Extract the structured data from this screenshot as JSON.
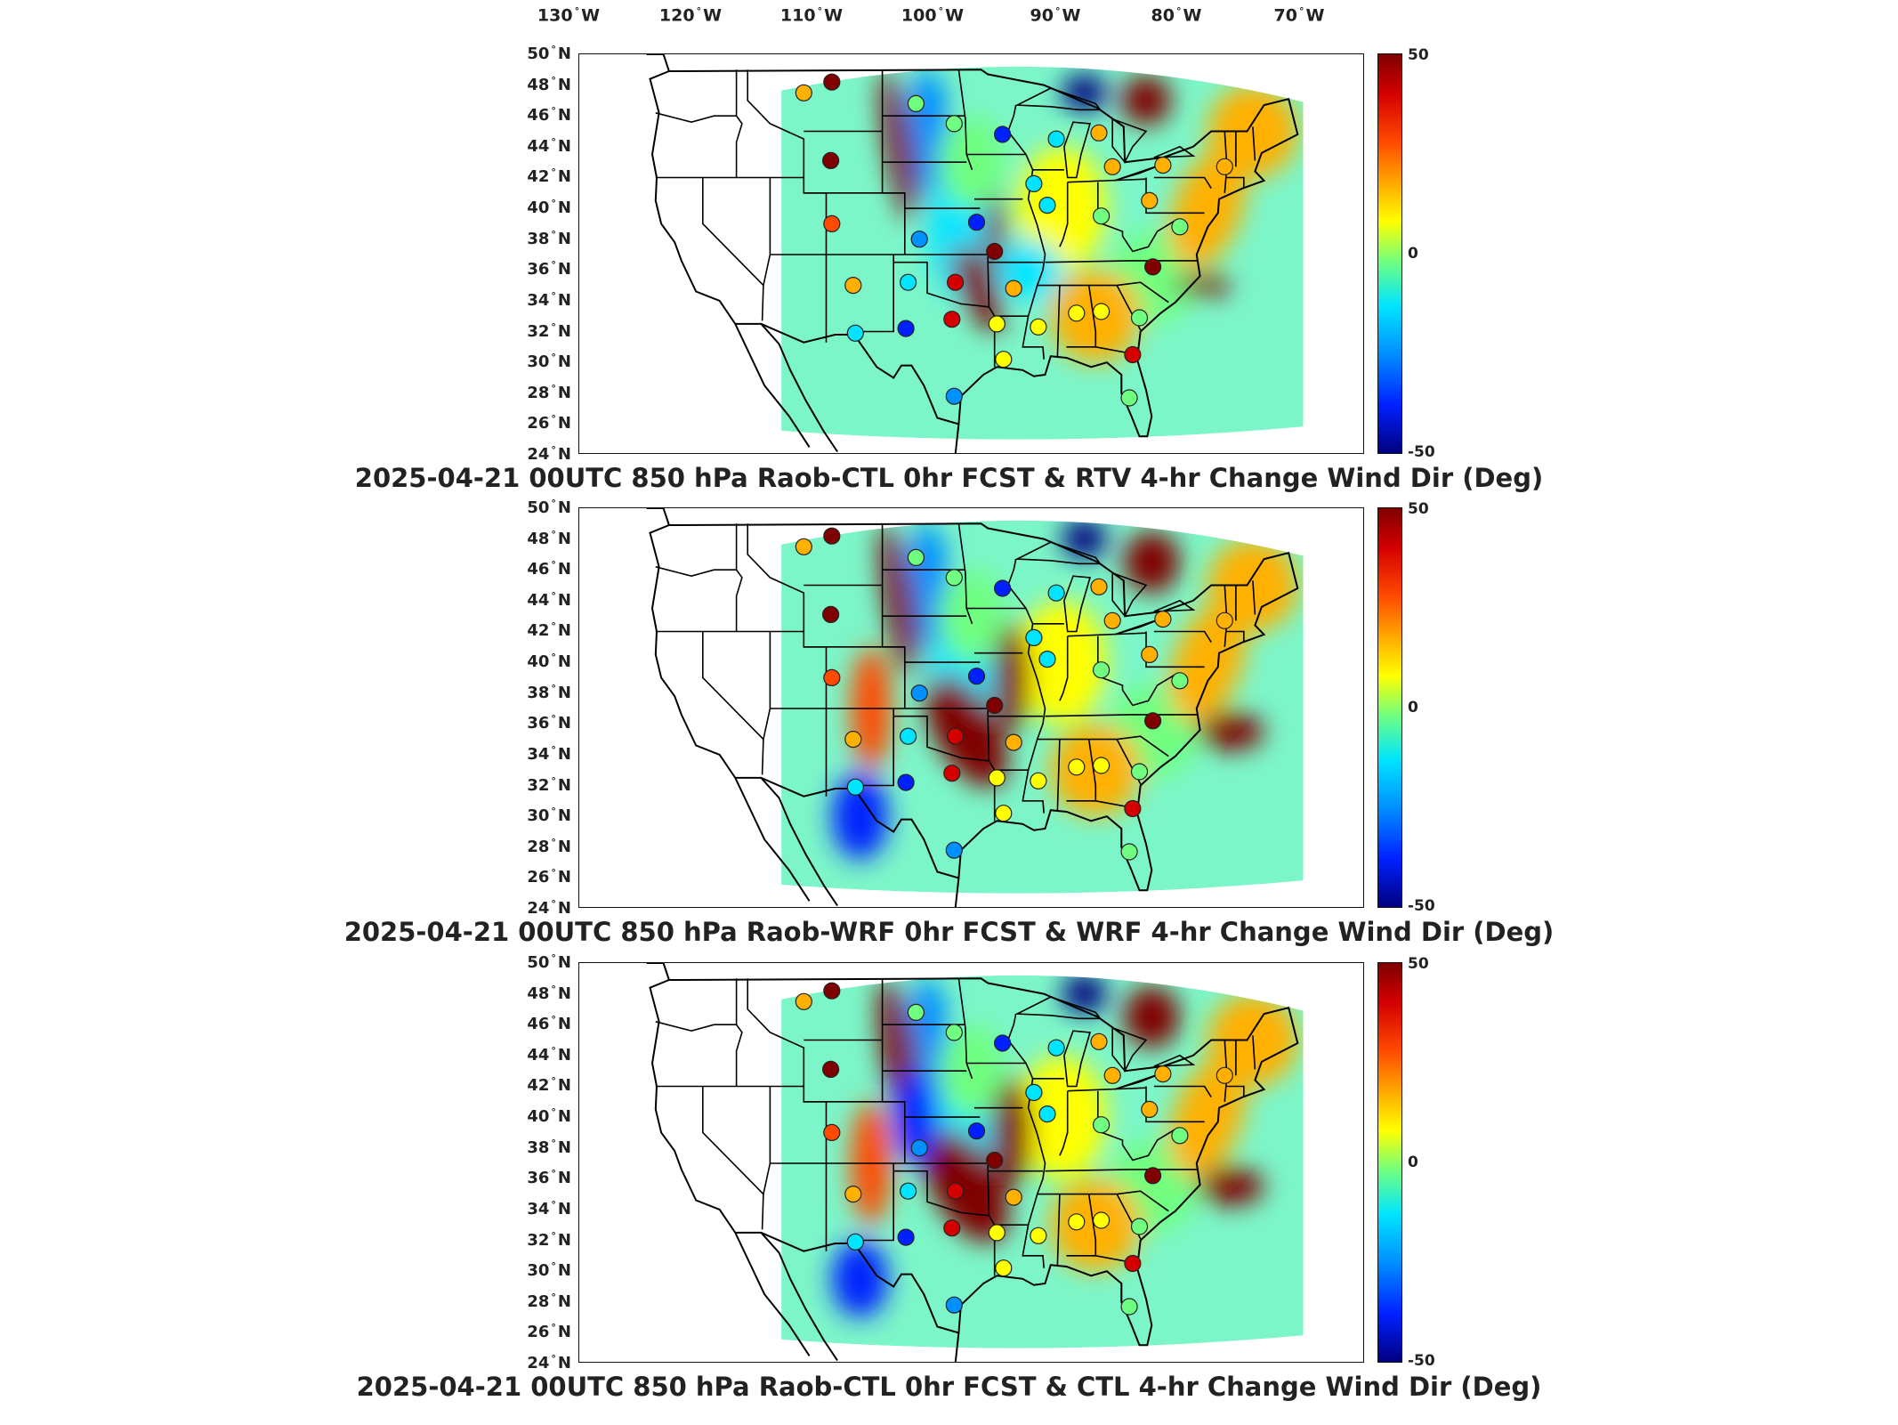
{
  "longitude_labels": [
    "130",
    "120",
    "110",
    "100",
    "90",
    "80",
    "70"
  ],
  "lon_suffix": "W",
  "latitude_labels": [
    "50",
    "48",
    "46",
    "44",
    "42",
    "40",
    "38",
    "36",
    "34",
    "32",
    "30",
    "28",
    "26",
    "24"
  ],
  "lat_suffix": "N",
  "colorbar": {
    "max": "50",
    "mid": "0",
    "min": "-50",
    "colors": [
      "#7f0000",
      "#d40000",
      "#ff4a00",
      "#ffb000",
      "#ffff00",
      "#70ff80",
      "#00e5ff",
      "#0090ff",
      "#0020ff",
      "#00007f"
    ]
  },
  "panels": [
    {
      "title": "2025-04-21 00UTC 850 hPa Raob-CTL 0hr FCST & RTV 4-hr Change Wind Dir (Deg)"
    },
    {
      "title": "2025-04-21 00UTC 850 hPa Raob-WRF 0hr FCST & WRF 4-hr Change Wind Dir (Deg)"
    },
    {
      "title": "2025-04-21 00UTC 850 hPa Raob-CTL 0hr FCST & CTL 4-hr Change Wind Dir (Deg)"
    }
  ],
  "stations": [
    {
      "lon": -111.0,
      "lat": 47.5,
      "val": 22
    },
    {
      "lon": -108.5,
      "lat": 48.2,
      "val": 48
    },
    {
      "lon": -101.0,
      "lat": 46.8,
      "val": -2
    },
    {
      "lon": -97.6,
      "lat": 45.5,
      "val": -8
    },
    {
      "lon": -93.3,
      "lat": 44.8,
      "val": -38
    },
    {
      "lon": -88.5,
      "lat": 44.5,
      "val": -14
    },
    {
      "lon": -84.7,
      "lat": 44.9,
      "val": 20
    },
    {
      "lon": -83.5,
      "lat": 42.7,
      "val": 22
    },
    {
      "lon": -79.0,
      "lat": 42.8,
      "val": 18
    },
    {
      "lon": -73.5,
      "lat": 42.7,
      "val": 12
    },
    {
      "lon": -108.6,
      "lat": 43.1,
      "val": 48
    },
    {
      "lon": -108.5,
      "lat": 39.0,
      "val": 30
    },
    {
      "lon": -100.7,
      "lat": 38.0,
      "val": -30
    },
    {
      "lon": -95.6,
      "lat": 39.1,
      "val": -40
    },
    {
      "lon": -94.0,
      "lat": 37.2,
      "val": 48
    },
    {
      "lon": -90.5,
      "lat": 41.6,
      "val": -20
    },
    {
      "lon": -89.3,
      "lat": 40.2,
      "val": -14
    },
    {
      "lon": -84.5,
      "lat": 39.5,
      "val": -6
    },
    {
      "lon": -80.2,
      "lat": 40.5,
      "val": 14
    },
    {
      "lon": -77.5,
      "lat": 38.8,
      "val": -10
    },
    {
      "lon": -79.9,
      "lat": 36.2,
      "val": 46
    },
    {
      "lon": -106.6,
      "lat": 35.0,
      "val": 16
    },
    {
      "lon": -101.7,
      "lat": 35.2,
      "val": -22
    },
    {
      "lon": -97.5,
      "lat": 35.2,
      "val": 38
    },
    {
      "lon": -92.3,
      "lat": 34.8,
      "val": 12
    },
    {
      "lon": -101.9,
      "lat": 32.2,
      "val": -40
    },
    {
      "lon": -97.8,
      "lat": 32.8,
      "val": 40
    },
    {
      "lon": -93.8,
      "lat": 32.5,
      "val": 6
    },
    {
      "lon": -90.1,
      "lat": 32.3,
      "val": 4
    },
    {
      "lon": -86.7,
      "lat": 33.2,
      "val": 2
    },
    {
      "lon": -84.5,
      "lat": 33.3,
      "val": 6
    },
    {
      "lon": -81.1,
      "lat": 32.9,
      "val": -6
    },
    {
      "lon": -106.4,
      "lat": 31.9,
      "val": -18
    },
    {
      "lon": -93.2,
      "lat": 30.2,
      "val": 2
    },
    {
      "lon": -97.6,
      "lat": 27.8,
      "val": -28
    },
    {
      "lon": -81.7,
      "lat": 30.5,
      "val": 42
    },
    {
      "lon": -82.0,
      "lat": 27.7,
      "val": 0
    }
  ]
}
